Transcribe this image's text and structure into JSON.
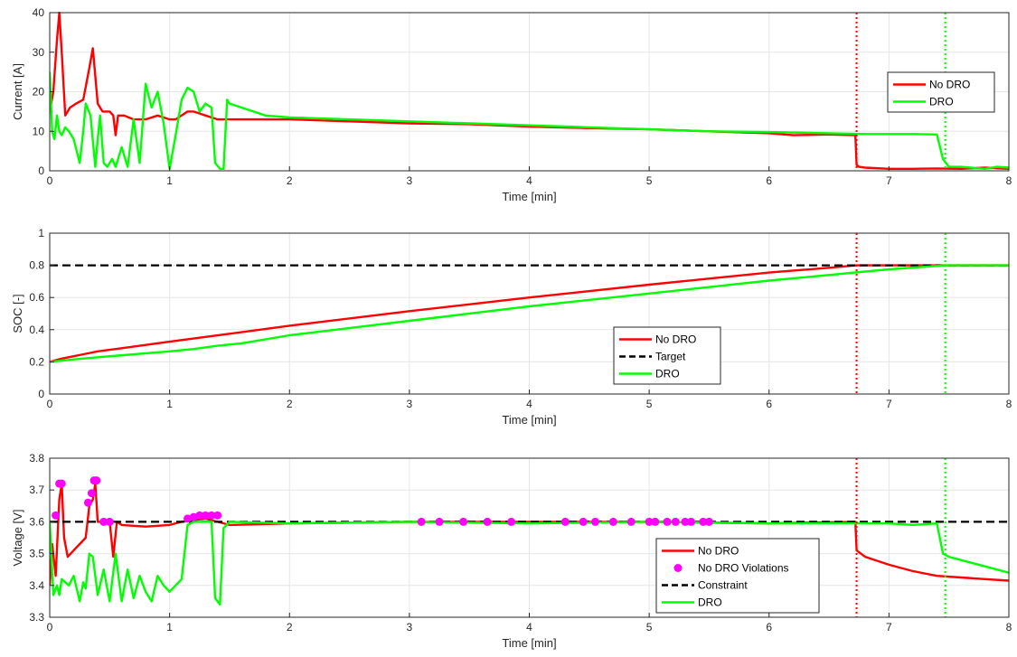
{
  "chart_data": [
    {
      "type": "line",
      "xlabel": "Time [min]",
      "ylabel": "Current [A]",
      "xlim": [
        0,
        8
      ],
      "ylim": [
        0,
        40
      ],
      "xticks": [
        "0",
        "1",
        "2",
        "3",
        "4",
        "5",
        "6",
        "7",
        "8"
      ],
      "yticks": [
        "0",
        "10",
        "20",
        "30",
        "40"
      ],
      "grid": true,
      "legend_position": "right",
      "series": [
        {
          "name": "No DRO",
          "color": "#ff0000",
          "x": [
            0,
            0.03,
            0.06,
            0.08,
            0.1,
            0.13,
            0.17,
            0.22,
            0.28,
            0.33,
            0.36,
            0.4,
            0.44,
            0.5,
            0.53,
            0.55,
            0.57,
            0.62,
            0.7,
            0.8,
            0.9,
            1.0,
            1.05,
            1.1,
            1.15,
            1.2,
            1.3,
            1.4,
            1.5,
            1.7,
            2,
            2.5,
            3,
            3.5,
            4,
            4.5,
            5,
            5.5,
            6,
            6.2,
            6.5,
            6.72,
            6.73,
            6.75,
            6.8,
            7,
            7.2,
            7.4,
            7.6,
            7.8,
            8
          ],
          "y": [
            15,
            20,
            33,
            40,
            30,
            14,
            16,
            17,
            18,
            26,
            31,
            17,
            15,
            15,
            14,
            9,
            14,
            14,
            13,
            13,
            14,
            13,
            13,
            14,
            15,
            15,
            14,
            13,
            13,
            13,
            13,
            12.5,
            12,
            11.8,
            11.2,
            10.8,
            10.5,
            10,
            9.5,
            9,
            9.2,
            9,
            1.5,
            1,
            0.8,
            0.5,
            0.5,
            0.6,
            0.5,
            0.8,
            0.5
          ]
        },
        {
          "name": "DRO",
          "color": "#00ff00",
          "x": [
            0,
            0.02,
            0.04,
            0.06,
            0.08,
            0.1,
            0.13,
            0.16,
            0.2,
            0.25,
            0.28,
            0.3,
            0.34,
            0.38,
            0.4,
            0.42,
            0.45,
            0.48,
            0.52,
            0.55,
            0.6,
            0.65,
            0.7,
            0.75,
            0.8,
            0.85,
            0.9,
            0.95,
            0.98,
            1.0,
            1.05,
            1.1,
            1.15,
            1.2,
            1.25,
            1.3,
            1.35,
            1.38,
            1.42,
            1.45,
            1.48,
            1.5,
            1.6,
            1.8,
            2,
            2.5,
            3,
            3.5,
            4,
            4.5,
            5,
            5.5,
            6,
            6.5,
            6.8,
            7,
            7.2,
            7.4,
            7.45,
            7.5,
            7.6,
            7.8,
            7.9,
            8
          ],
          "y": [
            25,
            10,
            8,
            14,
            10,
            9,
            11,
            10,
            8,
            2,
            10,
            17,
            14,
            1,
            8,
            14,
            2,
            1,
            3,
            1,
            6,
            1,
            13,
            2,
            22,
            16,
            20,
            12,
            5,
            0.5,
            9,
            18,
            21,
            20,
            15,
            17,
            16,
            2,
            0.5,
            0.5,
            18,
            17,
            16,
            14,
            13.5,
            13,
            12.5,
            12,
            11.5,
            11,
            10.5,
            10,
            9.8,
            9.5,
            9.3,
            9.3,
            9.3,
            9.2,
            3,
            1,
            1,
            0.5,
            1,
            0.8
          ]
        }
      ],
      "vlines": [
        {
          "x": 6.73,
          "color": "#ff0000",
          "style": "dotted"
        },
        {
          "x": 7.47,
          "color": "#00ff00",
          "style": "dotted"
        }
      ]
    },
    {
      "type": "line",
      "xlabel": "Time [min]",
      "ylabel": "SOC [-]",
      "xlim": [
        0,
        8
      ],
      "ylim": [
        0,
        1
      ],
      "xticks": [
        "0",
        "1",
        "2",
        "3",
        "4",
        "5",
        "6",
        "7",
        "8"
      ],
      "yticks": [
        "0",
        "0.2",
        "0.4",
        "0.6",
        "0.8",
        "1"
      ],
      "grid": true,
      "legend_position": "center-right",
      "series": [
        {
          "name": "No DRO",
          "color": "#ff0000",
          "x": [
            0,
            0.1,
            0.2,
            0.3,
            0.4,
            0.6,
            0.8,
            1.0,
            1.5,
            2,
            3,
            4,
            5,
            6,
            6.5,
            6.73,
            7,
            7.5,
            8
          ],
          "y": [
            0.2,
            0.22,
            0.235,
            0.25,
            0.265,
            0.285,
            0.305,
            0.325,
            0.375,
            0.425,
            0.515,
            0.6,
            0.68,
            0.755,
            0.785,
            0.8,
            0.8,
            0.8,
            0.8
          ]
        },
        {
          "name": "Target",
          "color": "#000000",
          "style": "dashed",
          "x": [
            0,
            8
          ],
          "y": [
            0.8,
            0.8
          ]
        },
        {
          "name": "DRO",
          "color": "#00ff00",
          "x": [
            0,
            0.2,
            0.5,
            1.0,
            1.2,
            1.4,
            1.6,
            2,
            3,
            4,
            5,
            6,
            7,
            7.47,
            8
          ],
          "y": [
            0.2,
            0.215,
            0.235,
            0.265,
            0.28,
            0.3,
            0.315,
            0.365,
            0.455,
            0.545,
            0.625,
            0.705,
            0.775,
            0.8,
            0.8
          ]
        }
      ],
      "vlines": [
        {
          "x": 6.73,
          "color": "#ff0000",
          "style": "dotted"
        },
        {
          "x": 7.47,
          "color": "#00ff00",
          "style": "dotted"
        }
      ]
    },
    {
      "type": "line",
      "xlabel": "Time [min]",
      "ylabel": "Voltage [V]",
      "xlim": [
        0,
        8
      ],
      "ylim": [
        3.3,
        3.8
      ],
      "xticks": [
        "0",
        "1",
        "2",
        "3",
        "4",
        "5",
        "6",
        "7",
        "8"
      ],
      "yticks": [
        "3.3",
        "3.4",
        "3.5",
        "3.6",
        "3.7",
        "3.8"
      ],
      "grid": true,
      "legend_position": "bottom-right",
      "series": [
        {
          "name": "No DRO",
          "color": "#ff0000",
          "x": [
            0,
            0.02,
            0.05,
            0.08,
            0.1,
            0.12,
            0.15,
            0.2,
            0.3,
            0.33,
            0.36,
            0.38,
            0.4,
            0.43,
            0.5,
            0.53,
            0.56,
            0.6,
            0.8,
            1.0,
            1.1,
            1.2,
            1.3,
            1.4,
            1.5,
            2,
            3,
            4,
            5,
            6,
            6.72,
            6.73,
            6.8,
            7,
            7.2,
            7.4,
            7.6,
            7.8,
            8
          ],
          "y": [
            3.4,
            3.53,
            3.43,
            3.67,
            3.72,
            3.55,
            3.49,
            3.51,
            3.55,
            3.65,
            3.67,
            3.72,
            3.6,
            3.6,
            3.6,
            3.49,
            3.6,
            3.59,
            3.585,
            3.59,
            3.6,
            3.605,
            3.61,
            3.6,
            3.59,
            3.595,
            3.6,
            3.6,
            3.6,
            3.595,
            3.6,
            3.51,
            3.49,
            3.465,
            3.445,
            3.43,
            3.425,
            3.42,
            3.415
          ]
        },
        {
          "name": "Constraint",
          "color": "#000000",
          "style": "dashed",
          "x": [
            0,
            8
          ],
          "y": [
            3.6,
            3.6
          ]
        },
        {
          "name": "DRO",
          "color": "#00ff00",
          "x": [
            0,
            0.03,
            0.06,
            0.08,
            0.1,
            0.13,
            0.16,
            0.2,
            0.25,
            0.28,
            0.3,
            0.33,
            0.36,
            0.4,
            0.45,
            0.5,
            0.55,
            0.6,
            0.65,
            0.7,
            0.75,
            0.8,
            0.85,
            0.9,
            0.95,
            1.0,
            1.05,
            1.1,
            1.15,
            1.2,
            1.3,
            1.35,
            1.38,
            1.42,
            1.45,
            1.5,
            2,
            3,
            4,
            5,
            6,
            6.8,
            7,
            7.2,
            7.4,
            7.45,
            7.5,
            7.7,
            7.9,
            8
          ],
          "y": [
            3.6,
            3.37,
            3.4,
            3.37,
            3.42,
            3.41,
            3.4,
            3.43,
            3.35,
            3.41,
            3.39,
            3.5,
            3.49,
            3.37,
            3.45,
            3.35,
            3.5,
            3.35,
            3.45,
            3.36,
            3.43,
            3.38,
            3.35,
            3.43,
            3.4,
            3.38,
            3.4,
            3.42,
            3.59,
            3.6,
            3.6,
            3.6,
            3.36,
            3.34,
            3.58,
            3.6,
            3.595,
            3.6,
            3.595,
            3.6,
            3.595,
            3.595,
            3.595,
            3.59,
            3.595,
            3.5,
            3.49,
            3.47,
            3.45,
            3.44
          ]
        }
      ],
      "markers": {
        "name": "No DRO Violations",
        "color": "#ff00ff",
        "x": [
          0.05,
          0.08,
          0.1,
          0.32,
          0.35,
          0.37,
          0.39,
          0.45,
          0.5,
          1.15,
          1.2,
          1.25,
          1.3,
          1.35,
          1.4,
          3.1,
          3.25,
          3.45,
          3.65,
          3.85,
          4.3,
          4.45,
          4.55,
          4.7,
          4.85,
          5.0,
          5.05,
          5.15,
          5.22,
          5.3,
          5.35,
          5.45,
          5.5
        ],
        "y": [
          3.62,
          3.72,
          3.72,
          3.66,
          3.69,
          3.73,
          3.73,
          3.6,
          3.6,
          3.61,
          3.615,
          3.62,
          3.62,
          3.62,
          3.62,
          3.6,
          3.6,
          3.6,
          3.6,
          3.6,
          3.6,
          3.6,
          3.6,
          3.6,
          3.6,
          3.6,
          3.6,
          3.6,
          3.6,
          3.6,
          3.6,
          3.6,
          3.6
        ]
      },
      "legend_order": [
        "No DRO",
        "No DRO Violations",
        "Constraint",
        "DRO"
      ],
      "vlines": [
        {
          "x": 6.73,
          "color": "#ff0000",
          "style": "dotted"
        },
        {
          "x": 7.47,
          "color": "#00ff00",
          "style": "dotted"
        }
      ]
    }
  ]
}
